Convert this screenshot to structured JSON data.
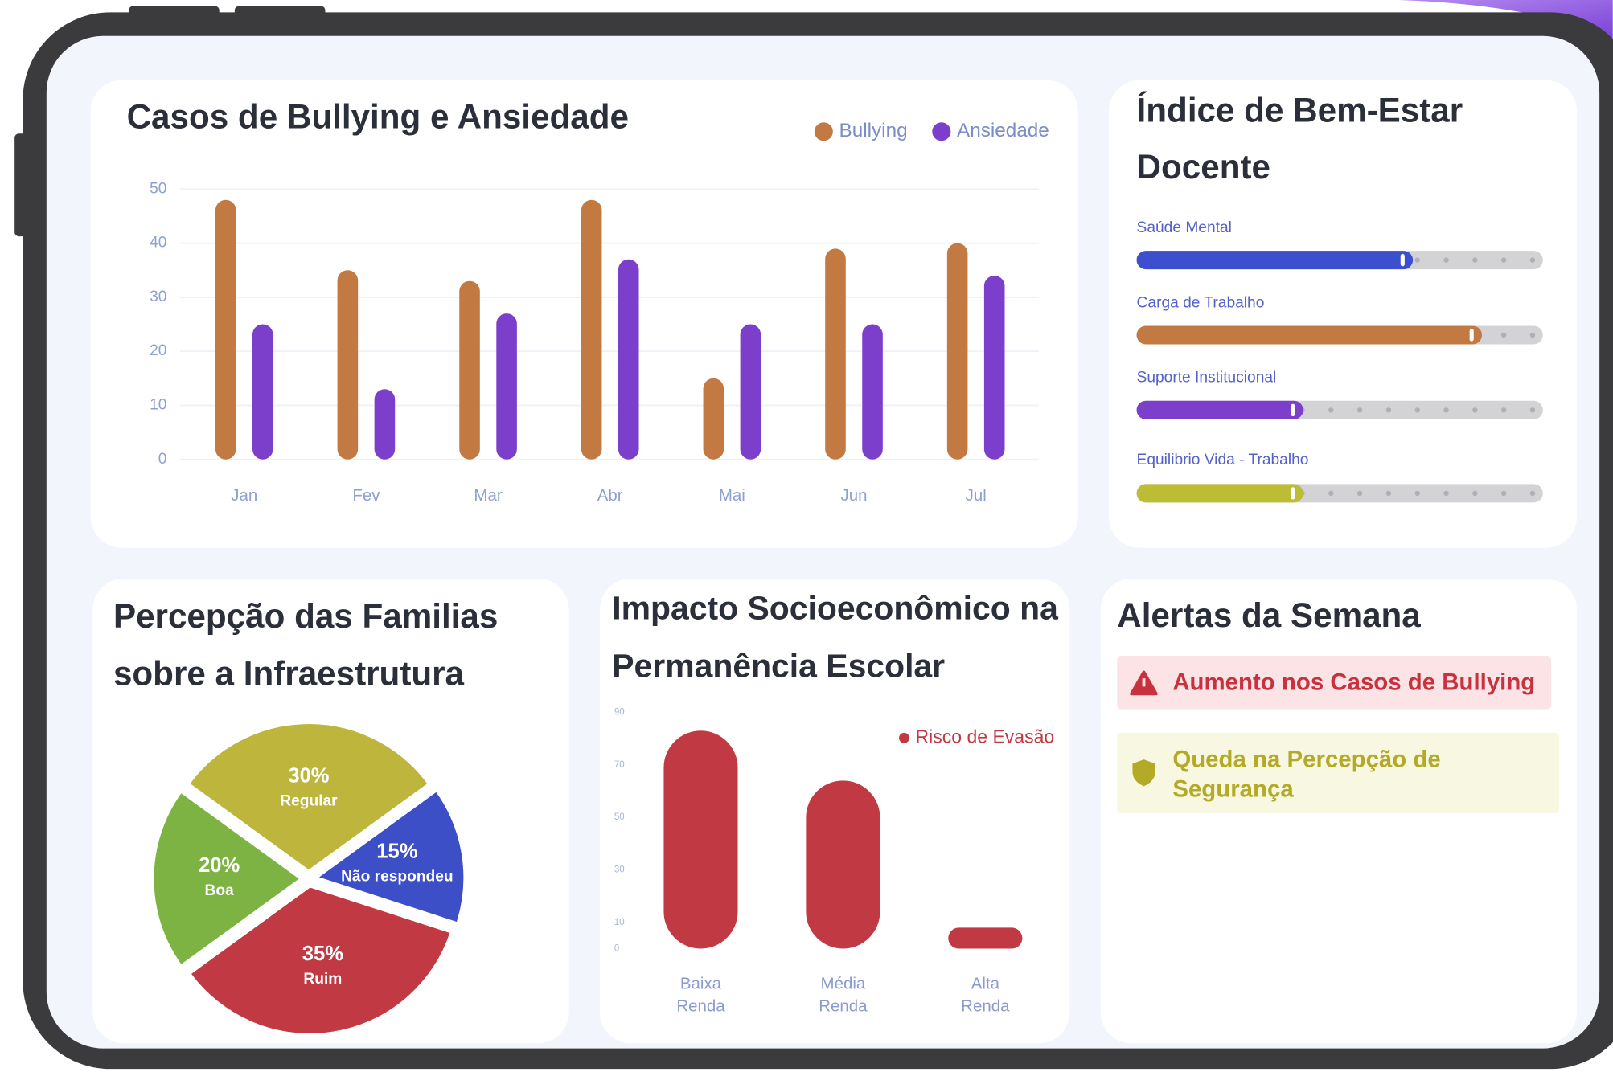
{
  "chart_data": [
    {
      "type": "bar",
      "title": "Casos de Bullying e Ansiedade",
      "categories": [
        "Jan",
        "Fev",
        "Mar",
        "Abr",
        "Mai",
        "Jun",
        "Jul"
      ],
      "series": [
        {
          "name": "Bullying",
          "color": "#c27a42",
          "values": [
            48,
            35,
            33,
            48,
            15,
            39,
            40
          ]
        },
        {
          "name": "Ansiedade",
          "color": "#7c3fcb",
          "values": [
            25,
            13,
            27,
            37,
            25,
            25,
            34
          ]
        }
      ],
      "ylim": [
        0,
        50
      ],
      "yticks": [
        0,
        10,
        20,
        30,
        40,
        50
      ],
      "grid": true,
      "legend": "top-right"
    },
    {
      "type": "progress",
      "title": "Índice de Bem-Estar Docente",
      "categories": [
        "Saúde Mental",
        "Carga de Trabalho",
        "Suporte Institucional",
        "Equilibrio Vida - Trabalho"
      ],
      "values": [
        68,
        85,
        41,
        41
      ],
      "colors": [
        "#3c4fcf",
        "#c27a42",
        "#7c3fcb",
        "#bcbc35"
      ],
      "xlim": [
        0,
        100
      ]
    },
    {
      "type": "pie",
      "title": "Percepção das Familias sobre a Infraestrutura",
      "categories": [
        "Regular",
        "Não respondeu",
        "Ruim",
        "Boa"
      ],
      "values": [
        30,
        15,
        35,
        20
      ],
      "value_labels": [
        "30%",
        "15%",
        "35%",
        "20%"
      ],
      "colors": [
        "#bdb53c",
        "#3d4fc6",
        "#c13a43",
        "#7cb342"
      ]
    },
    {
      "type": "bar",
      "title": "Impacto Socioeconômico na Permanência Escolar",
      "categories": [
        "Baixa Renda",
        "Média Renda",
        "Alta Renda"
      ],
      "series": [
        {
          "name": "Risco de Evasão",
          "color": "#c13a43",
          "values": [
            83,
            64,
            8
          ]
        }
      ],
      "ylim": [
        0,
        90
      ],
      "yticks": [
        0,
        10,
        30,
        50,
        70,
        90
      ],
      "grid": false,
      "legend": "top-right"
    }
  ],
  "alerts": {
    "title": "Alertas da Semana",
    "items": [
      {
        "text": "Aumento nos Casos de Bullying",
        "color": "#c8323f"
      },
      {
        "text": "Queda na Percepção de Segurança",
        "color": "#b3ab27"
      }
    ]
  }
}
